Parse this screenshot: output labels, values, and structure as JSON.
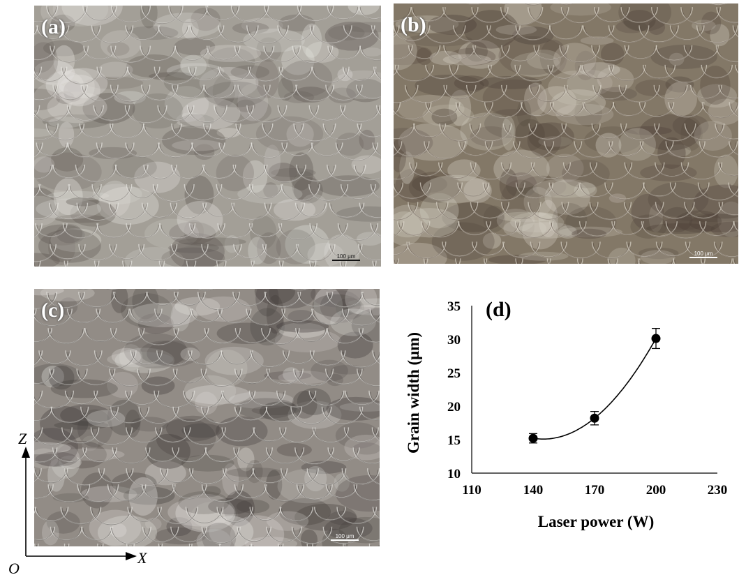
{
  "panels": [
    {
      "label": "(a)",
      "scale_bar": "100 μm",
      "tint": "#a39f97",
      "dark": "#5c5550",
      "light": "#e6e4e0"
    },
    {
      "label": "(b)",
      "scale_bar": "100 μm",
      "tint": "#837867",
      "dark": "#4d4038",
      "light": "#d8d3c8"
    },
    {
      "label": "(c)",
      "scale_bar": "100 μm",
      "tint": "#928c86",
      "dark": "#3f3a38",
      "light": "#e4e2de"
    }
  ],
  "coordinate_axes": {
    "vertical": "Z",
    "horizontal": "X",
    "origin": "O"
  },
  "chart_data": {
    "type": "scatter",
    "panel_label": "(d)",
    "xlabel": "Laser power (W)",
    "ylabel": "Grain width (μm)",
    "xlim": [
      110,
      230
    ],
    "ylim": [
      10,
      35
    ],
    "x_ticks": [
      110,
      140,
      170,
      200,
      230
    ],
    "y_ticks": [
      10,
      15,
      20,
      25,
      30,
      35
    ],
    "grid": false,
    "x": [
      140,
      170,
      200
    ],
    "y": [
      15.2,
      18.2,
      30.1
    ],
    "error": [
      0.7,
      1.0,
      1.5
    ],
    "trendline": "polynomial",
    "marker_color": "#000000"
  }
}
